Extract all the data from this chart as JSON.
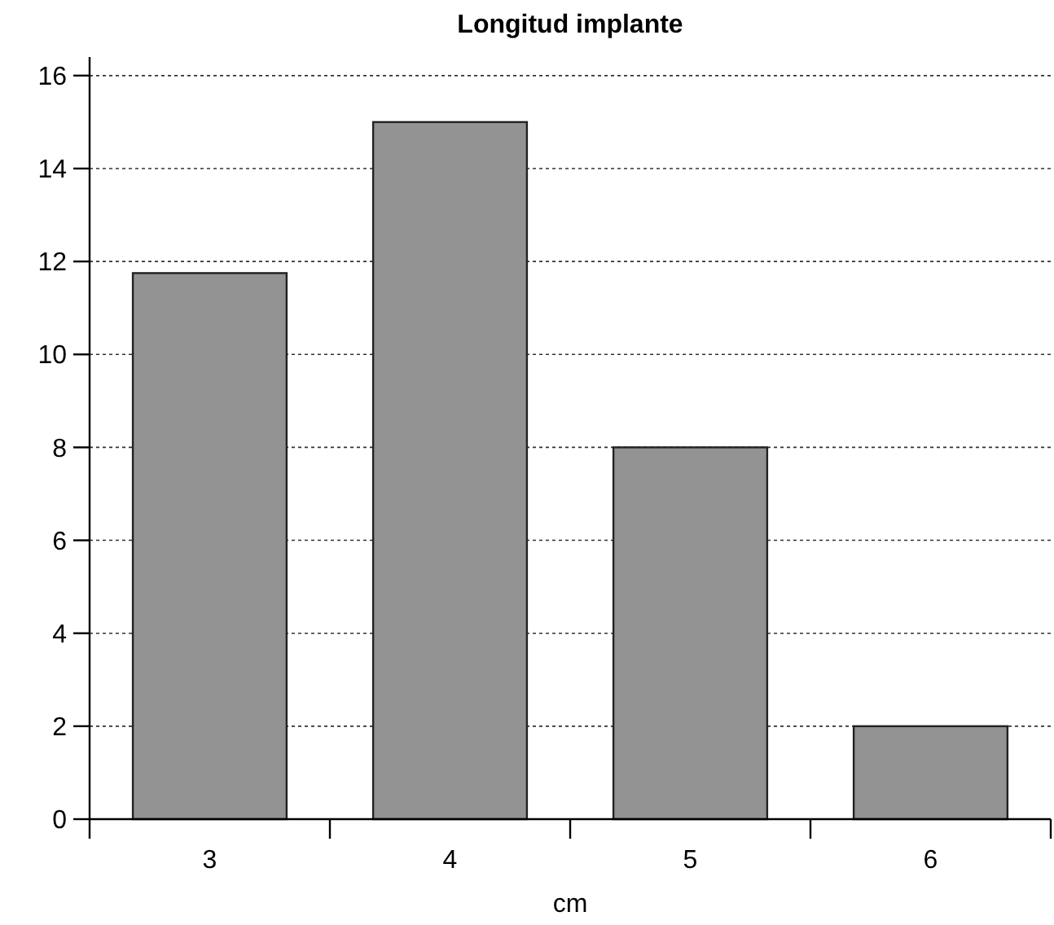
{
  "chart_data": {
    "type": "bar",
    "title": "Longitud implante",
    "xlabel": "cm",
    "categories": [
      "3",
      "4",
      "5",
      "6"
    ],
    "values": [
      11.75,
      15,
      8,
      2
    ],
    "color": "#939393",
    "ylim": [
      0,
      16.4
    ],
    "yticks": [
      0,
      2,
      4,
      6,
      8,
      10,
      12,
      14,
      16
    ],
    "grid": "y"
  }
}
